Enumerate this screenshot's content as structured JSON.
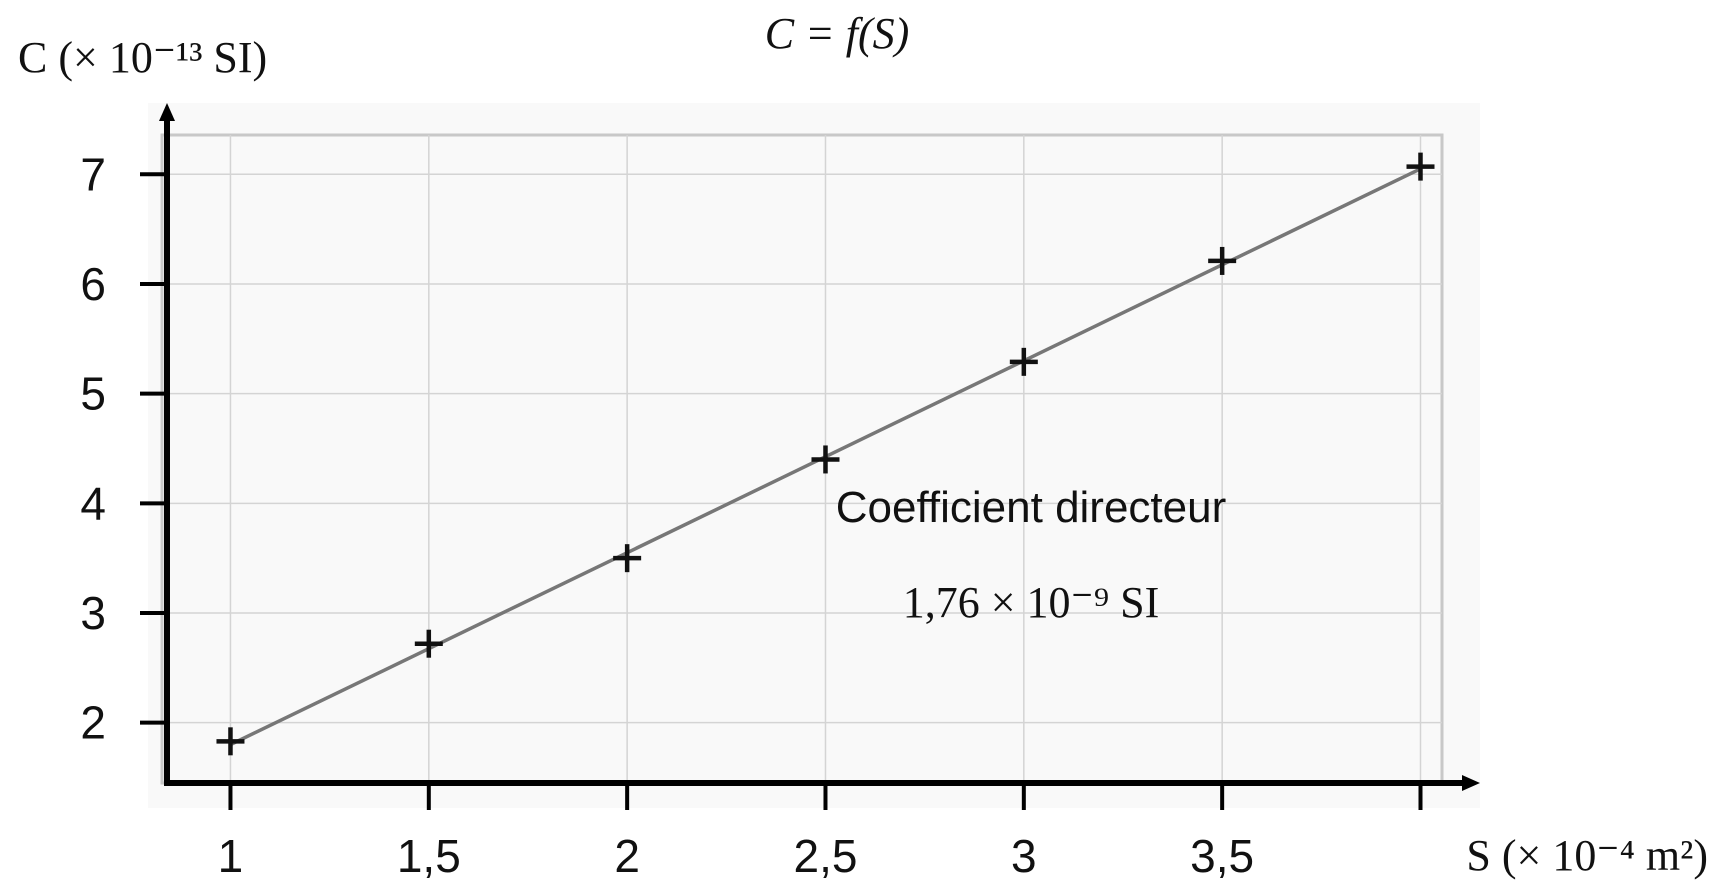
{
  "chart_data": {
    "type": "scatter",
    "title": "C = f(S)",
    "ylabel": "C (× 10⁻¹³ SI)",
    "xlabel": "S (× 10⁻⁴ m²)",
    "x_ticks": [
      1,
      1.5,
      2,
      2.5,
      3,
      3.5
    ],
    "x_tick_labels": [
      "1",
      "1,5",
      "2",
      "2,5",
      "3",
      "3,5"
    ],
    "y_ticks": [
      2,
      3,
      4,
      5,
      6,
      7
    ],
    "y_tick_labels": [
      "2",
      "3",
      "4",
      "5",
      "6",
      "7"
    ],
    "xlim": [
      0.84,
      4.15
    ],
    "ylim": [
      1.45,
      7.65
    ],
    "grid": true,
    "series": [
      {
        "x": [
          1,
          1.5,
          2,
          2.5,
          3,
          3.5,
          4
        ],
        "y": [
          1.83,
          2.72,
          3.5,
          4.4,
          5.29,
          6.21,
          7.07
        ]
      }
    ],
    "fit_line": {
      "x": [
        1,
        4
      ],
      "y": [
        1.8,
        7.05
      ]
    },
    "annotation": {
      "line1": "Coefficient directeur",
      "line2": "1,76 × 10⁻⁹ SI"
    },
    "colors": {
      "marker": "#111111",
      "line": "#777777",
      "grid": "#d4d4d4",
      "panel": "#f9f9f9"
    }
  }
}
